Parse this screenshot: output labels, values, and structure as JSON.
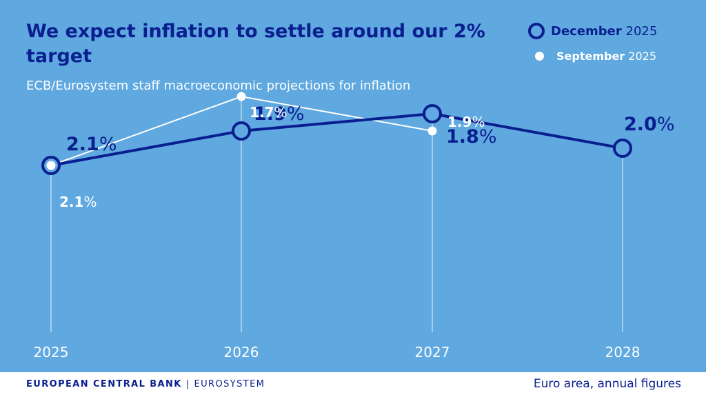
{
  "title": "We expect inflation to settle around our 2% target",
  "subtitle": "ECB/Eurosystem staff macroeconomic projections for inflation",
  "legend": {
    "december": {
      "month": "December",
      "year": "2025"
    },
    "september": {
      "month": "September",
      "year": "2025"
    }
  },
  "colors": {
    "background": "#5fa8e0",
    "december": "#0a1f8f",
    "september": "#ffffff"
  },
  "footer": {
    "brand_main": "EUROPEAN CENTRAL BANK",
    "brand_separator": "|",
    "brand_sub": "EUROSYSTEM",
    "note": "Euro area, annual figures"
  },
  "chart_data": {
    "type": "line",
    "title": "We expect inflation to settle around our 2% target",
    "subtitle": "ECB/Eurosystem staff macroeconomic projections for inflation",
    "x": [
      "2025",
      "2026",
      "2027",
      "2028"
    ],
    "unit": "%",
    "grid": false,
    "legend_position": "top-right",
    "series": [
      {
        "name": "December 2025",
        "values": [
          2.1,
          1.9,
          1.8,
          2.0
        ],
        "labels": [
          "2.1",
          "1.9",
          "1.8",
          "2.0"
        ],
        "color": "#0a1f8f",
        "marker": "ring"
      },
      {
        "name": "September 2025",
        "values": [
          2.1,
          1.7,
          1.9,
          null
        ],
        "labels": [
          "2.1",
          "1.7",
          "1.9",
          null
        ],
        "color": "#ffffff",
        "marker": "dot"
      }
    ]
  }
}
